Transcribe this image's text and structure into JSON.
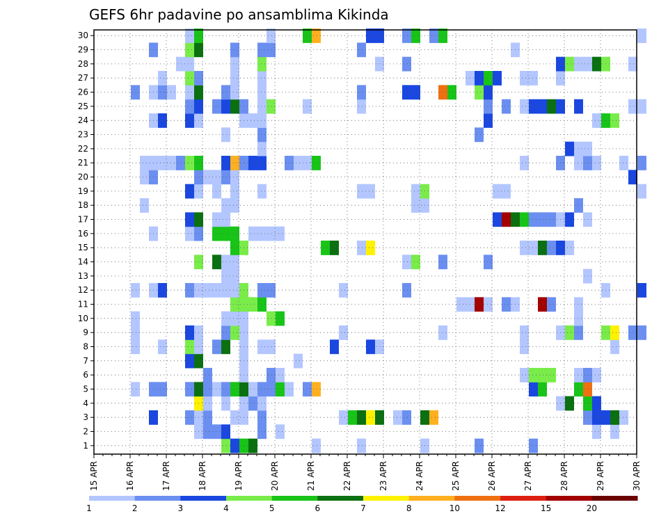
{
  "chart_data": {
    "type": "heatmap",
    "title": "GEFS 6hr padavine po ansamblima Kikinda",
    "x_tick_labels": [
      "15 APR",
      "16 APR",
      "17 APR",
      "18 APR",
      "19 APR",
      "20 APR",
      "21 APR",
      "22 APR",
      "23 APR",
      "24 APR",
      "25 APR",
      "26 APR",
      "27 APR",
      "28 APR",
      "29 APR",
      "30 APR"
    ],
    "y_tick_labels": [
      "1",
      "2",
      "3",
      "4",
      "5",
      "6",
      "7",
      "8",
      "9",
      "10",
      "11",
      "12",
      "13",
      "14",
      "15",
      "16",
      "17",
      "18",
      "19",
      "20",
      "21",
      "22",
      "23",
      "24",
      "25",
      "26",
      "27",
      "28",
      "29",
      "30"
    ],
    "time_steps_per_day": 4,
    "x_start_day": 15,
    "ensemble_members": [
      1,
      30
    ],
    "grid": true,
    "colorbar": {
      "labels": [
        "1",
        "2",
        "3",
        "4",
        "5",
        "6",
        "7",
        "8",
        "10",
        "12",
        "15",
        "20"
      ],
      "colors": [
        "#b3c6ff",
        "#6b8ff0",
        "#1a47e0",
        "#7aec4a",
        "#18c418",
        "#0a7010",
        "#fff200",
        "#ffb020",
        "#f07010",
        "#dd2010",
        "#a30000",
        "#6a0000"
      ]
    },
    "cells": [
      [
        1,
        18.5,
        4
      ],
      [
        1,
        18.75,
        3
      ],
      [
        1,
        19.0,
        5
      ],
      [
        1,
        19.25,
        6
      ],
      [
        1,
        21.0,
        1
      ],
      [
        1,
        22.25,
        1
      ],
      [
        1,
        24.0,
        1
      ],
      [
        1,
        25.5,
        2
      ],
      [
        1,
        27.0,
        2
      ],
      [
        2,
        17.75,
        1
      ],
      [
        2,
        18.0,
        2
      ],
      [
        2,
        18.25,
        2
      ],
      [
        2,
        18.5,
        3
      ],
      [
        2,
        19.5,
        2
      ],
      [
        2,
        20.0,
        1
      ],
      [
        2,
        28.75,
        1
      ],
      [
        2,
        29.25,
        1
      ],
      [
        3,
        16.5,
        3
      ],
      [
        3,
        17.5,
        2
      ],
      [
        3,
        17.75,
        1
      ],
      [
        3,
        18.0,
        2
      ],
      [
        3,
        18.75,
        1
      ],
      [
        3,
        19.0,
        1
      ],
      [
        3,
        19.5,
        2
      ],
      [
        3,
        21.75,
        1
      ],
      [
        3,
        22.0,
        5
      ],
      [
        3,
        22.25,
        6
      ],
      [
        3,
        22.5,
        7
      ],
      [
        3,
        22.75,
        6
      ],
      [
        3,
        23.25,
        1
      ],
      [
        3,
        23.5,
        2
      ],
      [
        3,
        24.0,
        6
      ],
      [
        3,
        24.25,
        8
      ],
      [
        3,
        28.5,
        2
      ],
      [
        3,
        28.75,
        3
      ],
      [
        3,
        29.0,
        3
      ],
      [
        3,
        29.25,
        6
      ],
      [
        3,
        29.5,
        1
      ],
      [
        4,
        17.75,
        7
      ],
      [
        4,
        18.0,
        1
      ],
      [
        4,
        18.5,
        1
      ],
      [
        4,
        19.0,
        1
      ],
      [
        4,
        19.25,
        2
      ],
      [
        4,
        19.5,
        1
      ],
      [
        4,
        27.75,
        1
      ],
      [
        4,
        28.0,
        6
      ],
      [
        4,
        28.5,
        5
      ],
      [
        4,
        28.75,
        3
      ],
      [
        5,
        16.0,
        1
      ],
      [
        5,
        16.5,
        2
      ],
      [
        5,
        16.75,
        2
      ],
      [
        5,
        17.5,
        2
      ],
      [
        5,
        17.75,
        6
      ],
      [
        5,
        18.0,
        2
      ],
      [
        5,
        18.25,
        1
      ],
      [
        5,
        18.5,
        2
      ],
      [
        5,
        18.75,
        5
      ],
      [
        5,
        19.0,
        6
      ],
      [
        5,
        19.25,
        1
      ],
      [
        5,
        19.5,
        2
      ],
      [
        5,
        19.75,
        2
      ],
      [
        5,
        20.0,
        5
      ],
      [
        5,
        20.25,
        1
      ],
      [
        5,
        20.75,
        2
      ],
      [
        5,
        21.0,
        8
      ],
      [
        5,
        27.0,
        3
      ],
      [
        5,
        27.25,
        5
      ],
      [
        5,
        28.25,
        5
      ],
      [
        5,
        28.5,
        9
      ],
      [
        6,
        18.0,
        2
      ],
      [
        6,
        19.0,
        1
      ],
      [
        6,
        19.75,
        2
      ],
      [
        6,
        20.0,
        1
      ],
      [
        6,
        26.75,
        1
      ],
      [
        6,
        27.0,
        4
      ],
      [
        6,
        27.25,
        4
      ],
      [
        6,
        27.5,
        4
      ],
      [
        6,
        28.25,
        1
      ],
      [
        6,
        28.5,
        2
      ],
      [
        6,
        28.75,
        1
      ],
      [
        7,
        17.5,
        3
      ],
      [
        7,
        17.75,
        6
      ],
      [
        7,
        19.0,
        1
      ],
      [
        7,
        20.5,
        1
      ],
      [
        8,
        16.0,
        1
      ],
      [
        8,
        16.75,
        1
      ],
      [
        8,
        17.5,
        4
      ],
      [
        8,
        17.75,
        1
      ],
      [
        8,
        18.25,
        2
      ],
      [
        8,
        18.5,
        6
      ],
      [
        8,
        19.0,
        1
      ],
      [
        8,
        19.5,
        1
      ],
      [
        8,
        19.75,
        1
      ],
      [
        8,
        21.5,
        3
      ],
      [
        8,
        22.5,
        3
      ],
      [
        8,
        22.75,
        1
      ],
      [
        8,
        26.75,
        1
      ],
      [
        8,
        29.25,
        1
      ],
      [
        9,
        16.0,
        1
      ],
      [
        9,
        17.5,
        3
      ],
      [
        9,
        17.75,
        1
      ],
      [
        9,
        18.5,
        2
      ],
      [
        9,
        18.75,
        4
      ],
      [
        9,
        19.0,
        1
      ],
      [
        9,
        21.75,
        1
      ],
      [
        9,
        24.5,
        1
      ],
      [
        9,
        26.75,
        1
      ],
      [
        9,
        27.75,
        1
      ],
      [
        9,
        28.0,
        4
      ],
      [
        9,
        28.25,
        2
      ],
      [
        9,
        29.0,
        4
      ],
      [
        9,
        29.25,
        7
      ],
      [
        9,
        29.75,
        2
      ],
      [
        9,
        30.0,
        2
      ],
      [
        10,
        16.0,
        1
      ],
      [
        10,
        18.5,
        1
      ],
      [
        10,
        18.75,
        1
      ],
      [
        10,
        19.0,
        1
      ],
      [
        10,
        19.75,
        4
      ],
      [
        10,
        20.0,
        5
      ],
      [
        10,
        28.25,
        1
      ],
      [
        11,
        18.75,
        4
      ],
      [
        11,
        19.0,
        4
      ],
      [
        11,
        19.25,
        4
      ],
      [
        11,
        19.5,
        5
      ],
      [
        11,
        25.0,
        1
      ],
      [
        11,
        25.25,
        1
      ],
      [
        11,
        25.5,
        11
      ],
      [
        11,
        25.75,
        1
      ],
      [
        11,
        26.25,
        2
      ],
      [
        11,
        26.5,
        1
      ],
      [
        11,
        27.25,
        11
      ],
      [
        11,
        27.5,
        2
      ],
      [
        11,
        28.25,
        1
      ],
      [
        12,
        16.0,
        1
      ],
      [
        12,
        16.5,
        1
      ],
      [
        12,
        16.75,
        3
      ],
      [
        12,
        17.5,
        2
      ],
      [
        12,
        17.75,
        1
      ],
      [
        12,
        18.0,
        1
      ],
      [
        12,
        18.25,
        1
      ],
      [
        12,
        18.5,
        1
      ],
      [
        12,
        18.75,
        1
      ],
      [
        12,
        19.0,
        4
      ],
      [
        12,
        19.5,
        2
      ],
      [
        12,
        19.75,
        2
      ],
      [
        12,
        21.75,
        1
      ],
      [
        12,
        23.5,
        2
      ],
      [
        12,
        29.0,
        1
      ],
      [
        12,
        30.0,
        3
      ],
      [
        13,
        18.5,
        1
      ],
      [
        13,
        18.75,
        1
      ],
      [
        13,
        28.5,
        1
      ],
      [
        14,
        17.75,
        4
      ],
      [
        14,
        18.25,
        6
      ],
      [
        14,
        18.5,
        1
      ],
      [
        14,
        18.75,
        1
      ],
      [
        14,
        23.5,
        1
      ],
      [
        14,
        23.75,
        4
      ],
      [
        14,
        24.5,
        2
      ],
      [
        14,
        25.75,
        2
      ],
      [
        15,
        18.75,
        5
      ],
      [
        15,
        19.0,
        4
      ],
      [
        15,
        21.25,
        5
      ],
      [
        15,
        21.5,
        6
      ],
      [
        15,
        22.25,
        1
      ],
      [
        15,
        22.5,
        7
      ],
      [
        15,
        26.75,
        1
      ],
      [
        15,
        27.0,
        1
      ],
      [
        15,
        27.25,
        6
      ],
      [
        15,
        27.5,
        2
      ],
      [
        15,
        27.75,
        3
      ],
      [
        15,
        28.0,
        1
      ],
      [
        16,
        16.5,
        1
      ],
      [
        16,
        17.5,
        1
      ],
      [
        16,
        17.75,
        2
      ],
      [
        16,
        18.25,
        5
      ],
      [
        16,
        18.5,
        5
      ],
      [
        16,
        18.75,
        5
      ],
      [
        16,
        19.25,
        1
      ],
      [
        16,
        19.5,
        1
      ],
      [
        16,
        19.75,
        1
      ],
      [
        16,
        20.0,
        1
      ],
      [
        17,
        17.5,
        3
      ],
      [
        17,
        17.75,
        6
      ],
      [
        17,
        18.25,
        1
      ],
      [
        17,
        18.5,
        1
      ],
      [
        17,
        26.0,
        3
      ],
      [
        17,
        26.25,
        11
      ],
      [
        17,
        26.5,
        6
      ],
      [
        17,
        26.75,
        5
      ],
      [
        17,
        27.0,
        2
      ],
      [
        17,
        27.25,
        2
      ],
      [
        17,
        27.5,
        2
      ],
      [
        17,
        27.75,
        1
      ],
      [
        17,
        28.0,
        3
      ],
      [
        17,
        28.5,
        1
      ],
      [
        18,
        16.25,
        1
      ],
      [
        18,
        18.5,
        1
      ],
      [
        18,
        18.75,
        1
      ],
      [
        18,
        23.75,
        1
      ],
      [
        18,
        24.0,
        1
      ],
      [
        18,
        28.25,
        2
      ],
      [
        19,
        17.5,
        3
      ],
      [
        19,
        17.75,
        1
      ],
      [
        19,
        18.25,
        1
      ],
      [
        19,
        18.75,
        1
      ],
      [
        19,
        19.5,
        1
      ],
      [
        19,
        22.25,
        1
      ],
      [
        19,
        22.5,
        1
      ],
      [
        19,
        23.75,
        1
      ],
      [
        19,
        24.0,
        4
      ],
      [
        19,
        26.0,
        1
      ],
      [
        19,
        26.25,
        1
      ],
      [
        19,
        30.0,
        1
      ],
      [
        20,
        16.25,
        1
      ],
      [
        20,
        16.5,
        2
      ],
      [
        20,
        17.75,
        2
      ],
      [
        20,
        18.0,
        1
      ],
      [
        20,
        18.25,
        1
      ],
      [
        20,
        18.5,
        2
      ],
      [
        20,
        18.75,
        1
      ],
      [
        20,
        29.75,
        3
      ],
      [
        21,
        16.25,
        1
      ],
      [
        21,
        16.5,
        1
      ],
      [
        21,
        16.75,
        1
      ],
      [
        21,
        17.0,
        1
      ],
      [
        21,
        17.25,
        2
      ],
      [
        21,
        17.5,
        4
      ],
      [
        21,
        17.75,
        5
      ],
      [
        21,
        18.5,
        3
      ],
      [
        21,
        18.75,
        8
      ],
      [
        21,
        19.0,
        2
      ],
      [
        21,
        19.25,
        3
      ],
      [
        21,
        19.5,
        3
      ],
      [
        21,
        20.25,
        2
      ],
      [
        21,
        20.5,
        1
      ],
      [
        21,
        20.75,
        1
      ],
      [
        21,
        21.0,
        5
      ],
      [
        21,
        26.75,
        1
      ],
      [
        21,
        27.75,
        2
      ],
      [
        21,
        28.25,
        1
      ],
      [
        21,
        28.5,
        2
      ],
      [
        21,
        28.75,
        1
      ],
      [
        21,
        29.5,
        1
      ],
      [
        21,
        30.0,
        2
      ],
      [
        22,
        19.5,
        1
      ],
      [
        22,
        28.0,
        3
      ],
      [
        22,
        28.25,
        1
      ],
      [
        22,
        28.5,
        1
      ],
      [
        23,
        18.5,
        1
      ],
      [
        23,
        19.5,
        2
      ],
      [
        23,
        25.5,
        2
      ],
      [
        24,
        16.5,
        1
      ],
      [
        24,
        16.75,
        3
      ],
      [
        24,
        17.5,
        3
      ],
      [
        24,
        17.75,
        1
      ],
      [
        24,
        19.0,
        1
      ],
      [
        24,
        19.25,
        1
      ],
      [
        24,
        19.5,
        1
      ],
      [
        24,
        25.75,
        3
      ],
      [
        24,
        28.75,
        1
      ],
      [
        24,
        29.0,
        5
      ],
      [
        24,
        29.25,
        4
      ],
      [
        25,
        17.5,
        2
      ],
      [
        25,
        17.75,
        3
      ],
      [
        25,
        18.25,
        2
      ],
      [
        25,
        18.5,
        3
      ],
      [
        25,
        18.75,
        6
      ],
      [
        25,
        19.0,
        2
      ],
      [
        25,
        19.5,
        1
      ],
      [
        25,
        19.75,
        4
      ],
      [
        25,
        20.75,
        1
      ],
      [
        25,
        22.25,
        1
      ],
      [
        25,
        25.75,
        2
      ],
      [
        25,
        26.25,
        2
      ],
      [
        25,
        26.75,
        1
      ],
      [
        25,
        27.0,
        3
      ],
      [
        25,
        27.25,
        3
      ],
      [
        25,
        27.5,
        6
      ],
      [
        25,
        27.75,
        3
      ],
      [
        25,
        28.25,
        3
      ],
      [
        25,
        29.75,
        1
      ],
      [
        25,
        30.0,
        1
      ],
      [
        26,
        16.0,
        2
      ],
      [
        26,
        16.5,
        1
      ],
      [
        26,
        16.75,
        2
      ],
      [
        26,
        17.0,
        1
      ],
      [
        26,
        17.5,
        1
      ],
      [
        26,
        17.75,
        6
      ],
      [
        26,
        18.5,
        2
      ],
      [
        26,
        18.75,
        1
      ],
      [
        26,
        19.5,
        1
      ],
      [
        26,
        22.25,
        2
      ],
      [
        26,
        23.5,
        3
      ],
      [
        26,
        23.75,
        3
      ],
      [
        26,
        24.5,
        9
      ],
      [
        26,
        24.75,
        5
      ],
      [
        26,
        25.5,
        4
      ],
      [
        26,
        25.75,
        3
      ],
      [
        27,
        16.75,
        1
      ],
      [
        27,
        17.5,
        4
      ],
      [
        27,
        17.75,
        2
      ],
      [
        27,
        18.75,
        1
      ],
      [
        27,
        19.5,
        1
      ],
      [
        27,
        25.25,
        1
      ],
      [
        27,
        25.5,
        3
      ],
      [
        27,
        25.75,
        5
      ],
      [
        27,
        26.0,
        3
      ],
      [
        27,
        26.75,
        1
      ],
      [
        27,
        27.0,
        1
      ],
      [
        27,
        27.75,
        1
      ],
      [
        28,
        17.25,
        1
      ],
      [
        28,
        17.5,
        1
      ],
      [
        28,
        18.75,
        1
      ],
      [
        28,
        19.5,
        4
      ],
      [
        28,
        22.75,
        1
      ],
      [
        28,
        23.5,
        2
      ],
      [
        28,
        27.75,
        3
      ],
      [
        28,
        28.0,
        4
      ],
      [
        28,
        28.25,
        1
      ],
      [
        28,
        28.5,
        1
      ],
      [
        28,
        28.75,
        6
      ],
      [
        28,
        29.0,
        4
      ],
      [
        28,
        29.75,
        1
      ],
      [
        29,
        16.5,
        2
      ],
      [
        29,
        17.5,
        4
      ],
      [
        29,
        17.75,
        6
      ],
      [
        29,
        18.75,
        2
      ],
      [
        29,
        19.5,
        2
      ],
      [
        29,
        19.75,
        2
      ],
      [
        29,
        22.25,
        2
      ],
      [
        29,
        26.5,
        1
      ],
      [
        30,
        17.5,
        1
      ],
      [
        30,
        17.75,
        5
      ],
      [
        30,
        19.75,
        1
      ],
      [
        30,
        20.75,
        5
      ],
      [
        30,
        21.0,
        8
      ],
      [
        30,
        22.5,
        3
      ],
      [
        30,
        22.75,
        3
      ],
      [
        30,
        23.5,
        2
      ],
      [
        30,
        23.75,
        5
      ],
      [
        30,
        24.25,
        2
      ],
      [
        30,
        24.5,
        5
      ],
      [
        30,
        30.0,
        1
      ]
    ]
  }
}
